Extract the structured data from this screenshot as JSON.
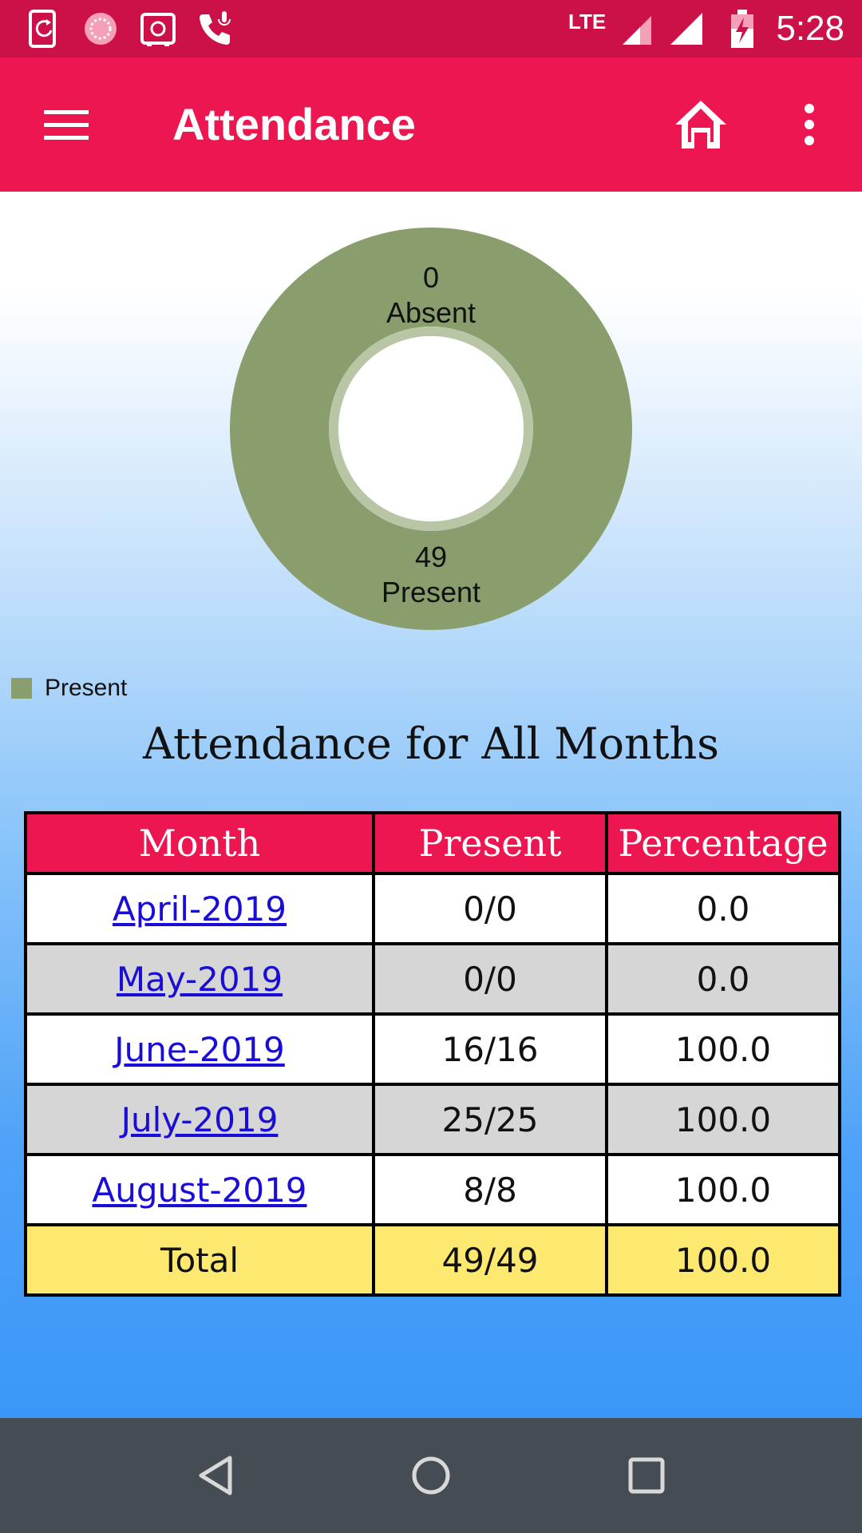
{
  "status_bar": {
    "time": "5:28",
    "network": "LTE",
    "icons": [
      "phone-sync-icon",
      "loading-icon",
      "safe-icon",
      "call-icon",
      "signal-icon",
      "battery-charging-icon"
    ]
  },
  "app_bar": {
    "title": "Attendance",
    "icons": [
      "menu-icon",
      "home-icon",
      "more-vert-icon"
    ]
  },
  "colors": {
    "status_bar": "#cc1048",
    "app_bar": "#ec1651",
    "donut": "#8a9e6d",
    "table_header": "#ec1651",
    "total_row": "#fde96f",
    "link": "#1a0dd4"
  },
  "chart_data": {
    "type": "pie",
    "donut": true,
    "slices": [
      {
        "label": "Absent",
        "value": 0
      },
      {
        "label": "Present",
        "value": 49
      }
    ],
    "legend": [
      "Present"
    ],
    "legend_placement": "bottom-left"
  },
  "chart_labels": {
    "absent_value": "0",
    "absent_label": "Absent",
    "present_value": "49",
    "present_label": "Present"
  },
  "legend": {
    "present": "Present"
  },
  "section_title": "Attendance for All Months",
  "table": {
    "headers": [
      "Month",
      "Present",
      "Percentage"
    ],
    "rows": [
      {
        "month": "April-2019",
        "present": "0/0",
        "percentage": "0.0"
      },
      {
        "month": "May-2019",
        "present": "0/0",
        "percentage": "0.0"
      },
      {
        "month": "June-2019",
        "present": "16/16",
        "percentage": "100.0"
      },
      {
        "month": "July-2019",
        "present": "25/25",
        "percentage": "100.0"
      },
      {
        "month": "August-2019",
        "present": "8/8",
        "percentage": "100.0"
      }
    ],
    "total": {
      "month": "Total",
      "present": "49/49",
      "percentage": "100.0"
    }
  },
  "nav_bar": {
    "icons": [
      "back-icon",
      "home-circle-icon",
      "recents-icon"
    ]
  }
}
